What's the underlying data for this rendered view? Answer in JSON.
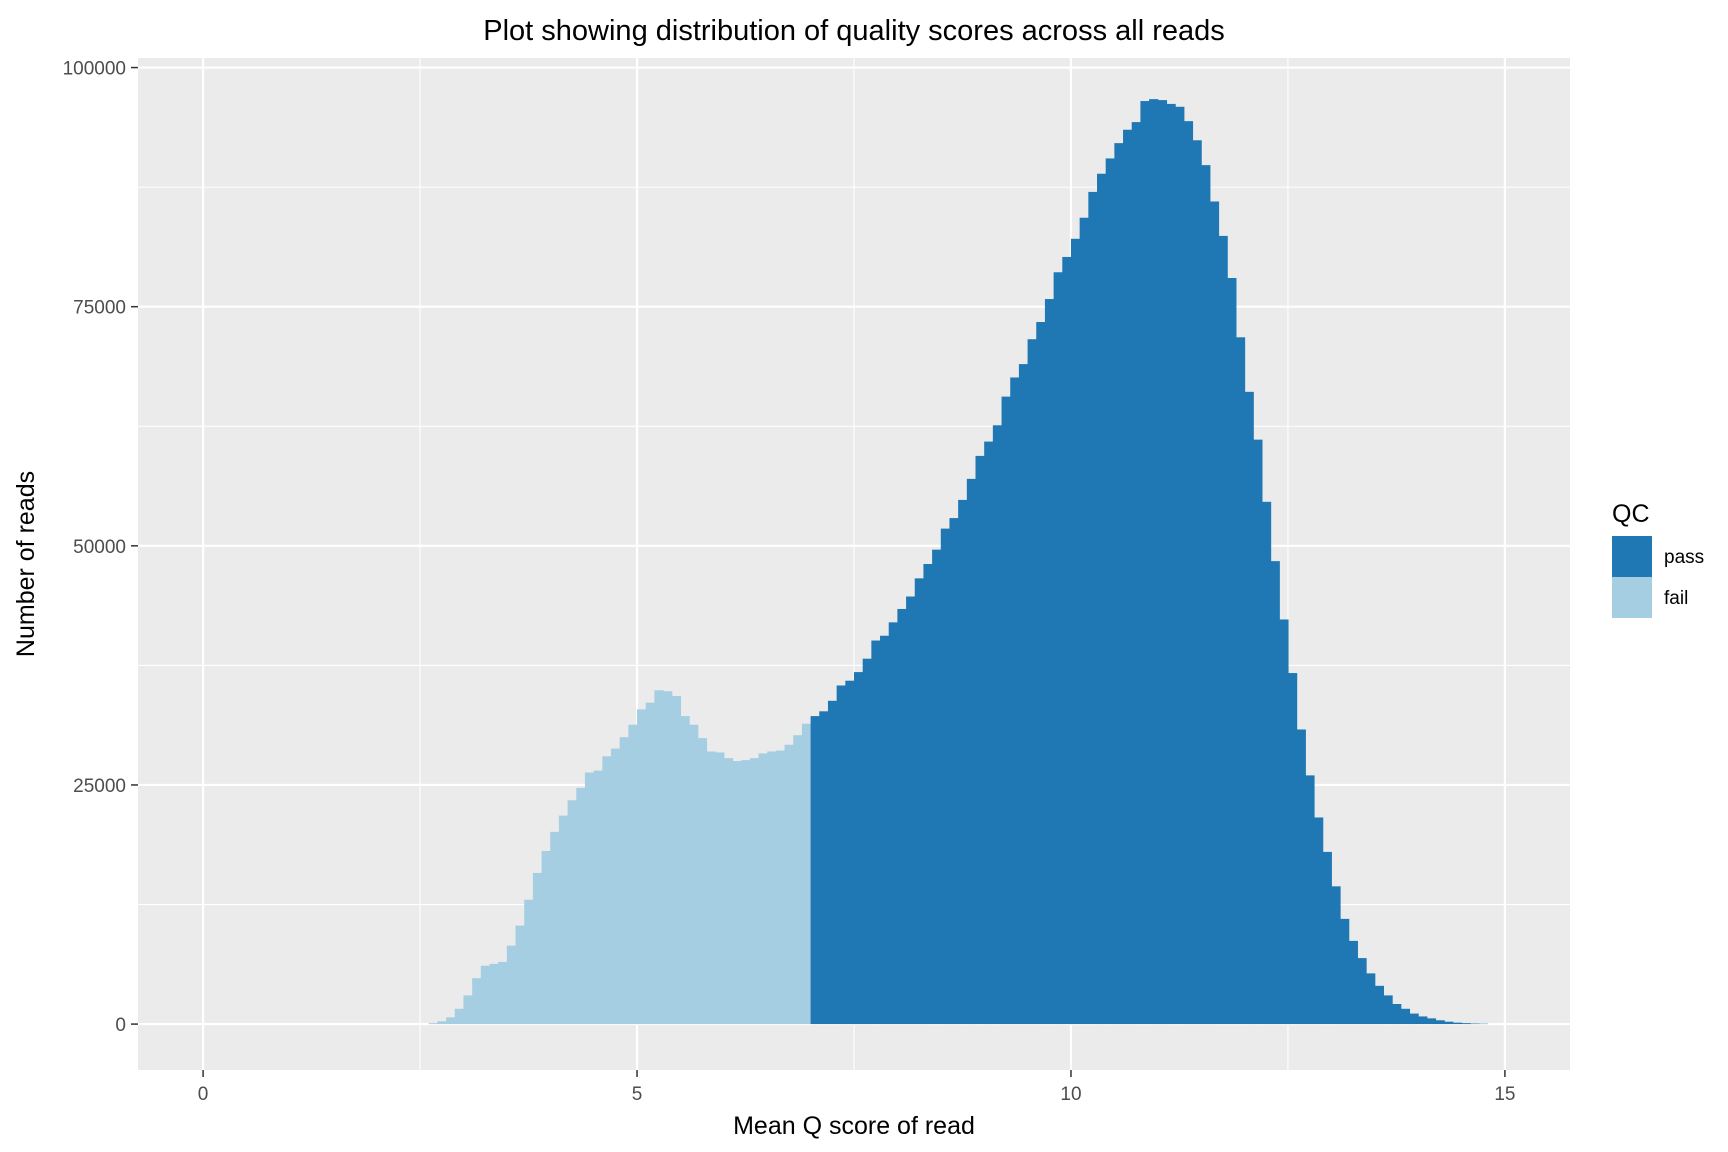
{
  "chart_data": {
    "type": "bar",
    "subtype": "histogram",
    "title": "Plot showing distribution of quality scores across all reads",
    "xlabel": "Mean Q score of read",
    "ylabel": "Number of reads",
    "xlim": [
      -0.75,
      15.75
    ],
    "ylim": [
      -4800,
      101000
    ],
    "x_ticks": [
      0,
      5,
      10,
      15
    ],
    "x_tick_labels": [
      "0",
      "5",
      "10",
      "15"
    ],
    "y_ticks": [
      0,
      25000,
      50000,
      75000,
      100000
    ],
    "y_tick_labels": [
      "0",
      "25000",
      "50000",
      "75000",
      "100000"
    ],
    "grid": true,
    "bin_width": 0.1,
    "legend": {
      "title": "QC",
      "placement": "right",
      "entries": [
        {
          "label": "pass",
          "color": "#1f78b4"
        },
        {
          "label": "fail",
          "color": "#a6cee3"
        }
      ]
    },
    "series": [
      {
        "name": "fail",
        "color": "#a6cee3",
        "x_start": 2.6,
        "values": [
          100,
          300,
          700,
          1600,
          3000,
          4800,
          6100,
          6300,
          6500,
          8200,
          10300,
          13000,
          15800,
          18100,
          20100,
          21800,
          23400,
          24700,
          26300,
          26500,
          28000,
          28800,
          30000,
          31300,
          32900,
          33600,
          34900,
          34800,
          34300,
          32200,
          31300,
          29900,
          28500,
          28400,
          27800,
          27500,
          27600,
          27800,
          28300,
          28500,
          28600,
          29200,
          30200,
          31400
        ]
      },
      {
        "name": "pass",
        "color": "#1f78b4",
        "x_start": 7.0,
        "values": [
          32200,
          32700,
          33800,
          35400,
          35900,
          36800,
          38200,
          40100,
          40600,
          42000,
          43400,
          44700,
          46600,
          48100,
          49600,
          51800,
          52900,
          54800,
          57000,
          59400,
          60900,
          62600,
          65600,
          67600,
          69000,
          71600,
          73400,
          75800,
          78600,
          80200,
          82100,
          84300,
          87000,
          88900,
          90500,
          92100,
          93500,
          94300,
          96500,
          96700,
          96600,
          96200,
          95900,
          94400,
          92400,
          89800,
          86000,
          82400,
          78000,
          71800,
          66100,
          61100,
          54600,
          48400,
          42300,
          36700,
          30800,
          26000,
          21600,
          18000,
          14400,
          11000,
          8700,
          6900,
          5300,
          4000,
          3000,
          2100,
          1600,
          1100,
          800,
          600,
          400,
          250,
          150,
          100,
          60,
          40
        ]
      }
    ]
  }
}
